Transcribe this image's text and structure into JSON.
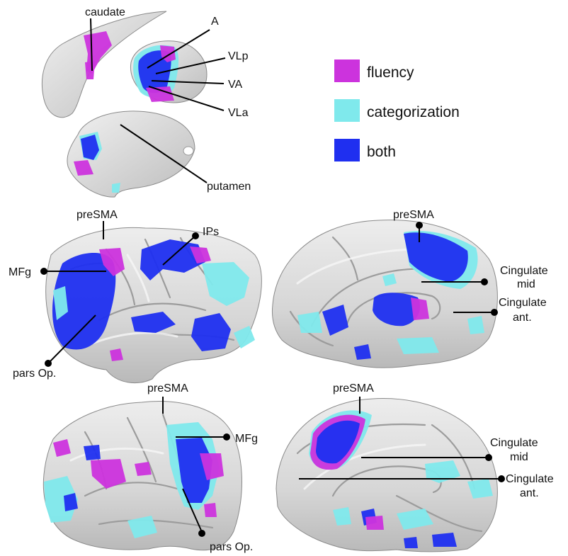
{
  "colors": {
    "fluency": "#cc33dd",
    "categorization": "#7fe9ec",
    "both": "#1f2ff0",
    "brain": "#d9d9d9",
    "pointer": "#000000"
  },
  "legend": [
    {
      "key": "fluency",
      "label": "fluency"
    },
    {
      "key": "categorization",
      "label": "categorization"
    },
    {
      "key": "both",
      "label": "both"
    }
  ],
  "subcortical_labels": {
    "caudate": "caudate",
    "A": "A",
    "VLp": "VLp",
    "VA": "VA",
    "VLa": "VLa",
    "putamen": "putamen"
  },
  "left_lateral_labels": {
    "preSMA": "preSMA",
    "IPs": "IPs",
    "MFg": "MFg",
    "parsOp": "pars Op."
  },
  "left_medial_labels": {
    "preSMA": "preSMA",
    "cingulate_mid_1": "Cingulate",
    "cingulate_mid_2": "mid",
    "cingulate_ant_1": "Cingulate",
    "cingulate_ant_2": "ant."
  },
  "right_lateral_labels": {
    "preSMA": "preSMA",
    "MFg": "MFg",
    "parsOp": "pars Op."
  },
  "right_medial_labels": {
    "preSMA": "preSMA",
    "cingulate_mid_1": "Cingulate",
    "cingulate_mid_2": "mid",
    "cingulate_ant_1": "Cingulate",
    "cingulate_ant_2": "ant."
  }
}
